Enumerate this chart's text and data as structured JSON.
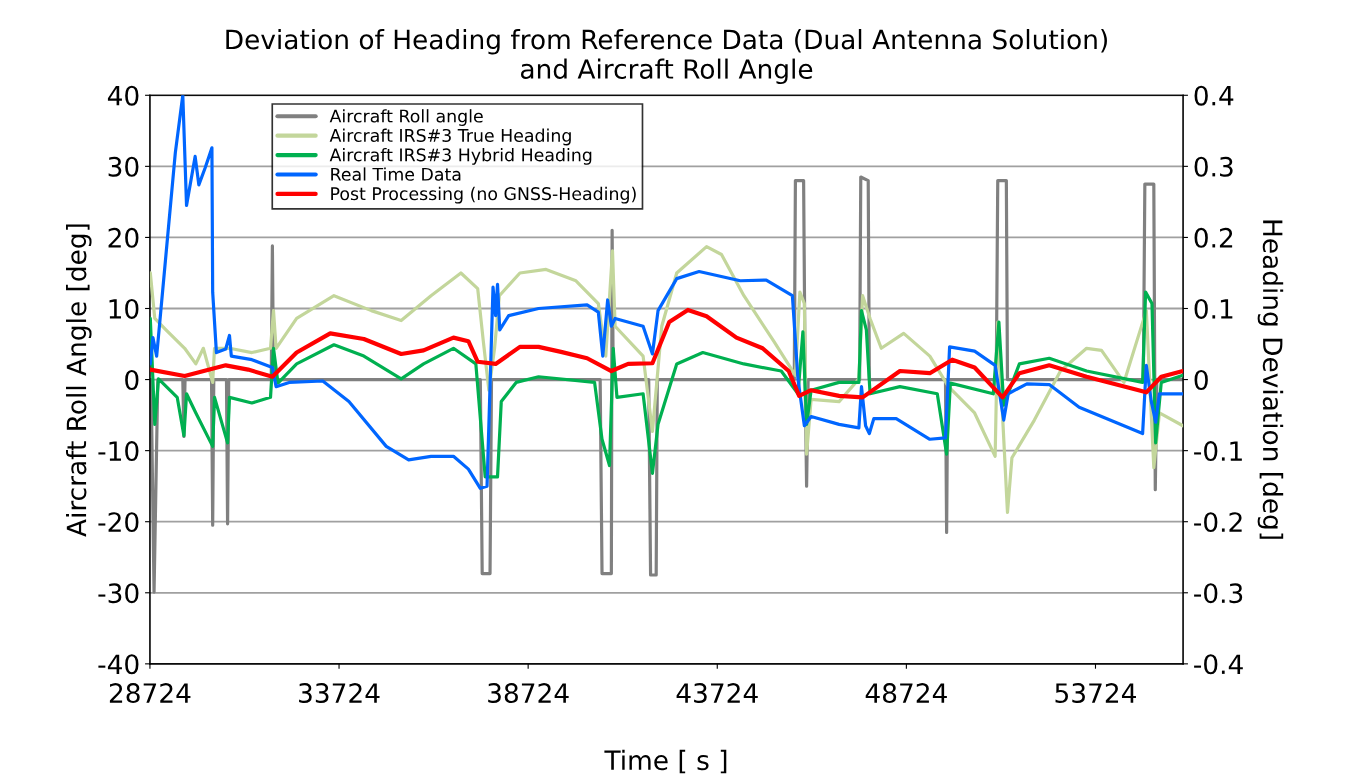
{
  "chart_data": {
    "type": "line",
    "title": "Deviation of Heading from Reference Data (Dual Antenna Solution)\nand Aircraft Roll Angle",
    "xlabel": "Time [ s ]",
    "ylabel": "Aircraft Roll Angle [deg]",
    "y2label": "Heading Deviation [deg]",
    "xlim": [
      28724,
      56040
    ],
    "xticks": [
      28724,
      33724,
      38724,
      43724,
      48724,
      53724
    ],
    "ylim": [
      -40,
      40
    ],
    "yticks": [
      -40,
      -30,
      -20,
      -10,
      0,
      10,
      20,
      30,
      40
    ],
    "y2lim": [
      -0.4,
      0.4
    ],
    "y2ticks": [
      -0.4,
      -0.3,
      -0.2,
      -0.1,
      0,
      0.1,
      0.2,
      0.3,
      0.4
    ],
    "grid": "y",
    "legend": "top left",
    "marker": "none",
    "line_style": "solid",
    "series": [
      {
        "name": "Aircraft Roll angle",
        "color": "#808080",
        "x": [
          28724,
          28754,
          28833,
          28932,
          29593,
          29623,
          29652,
          30353,
          30383,
          30412,
          30748,
          30777,
          30807,
          31932,
          31962,
          31991,
          37459,
          37509,
          37716,
          37755,
          40628,
          40677,
          40924,
          40944,
          40973,
          41911,
          41961,
          42109,
          42138,
          45760,
          45790,
          46007,
          46047,
          46086,
          46126,
          47488,
          47518,
          47715,
          47745,
          49758,
          49788,
          49817,
          51100,
          51140,
          51367,
          51397,
          54989,
          55029,
          55266,
          55305,
          55345,
          56036
        ],
        "values": [
          0,
          0,
          -29.9,
          0,
          0,
          -8,
          0,
          0,
          -20.5,
          0,
          0,
          -20.3,
          0,
          0,
          18.8,
          0,
          0,
          -27.3,
          -27.3,
          0,
          0,
          -27.3,
          -27.3,
          21,
          0,
          0,
          -27.5,
          -27.5,
          0,
          0,
          28,
          28,
          0,
          -15,
          0,
          0,
          28.5,
          28,
          0,
          0,
          -21.5,
          0,
          0,
          28,
          28,
          0,
          0,
          27.5,
          27.5,
          -15.5,
          0,
          0
        ]
      },
      {
        "name": "Aircraft IRS#3 True Heading",
        "color": "#c3d69b",
        "axis": "y2",
        "x": [
          28734,
          28852,
          29148,
          29642,
          29938,
          30136,
          30383,
          30432,
          30827,
          31419,
          31912,
          31991,
          32060,
          32603,
          33590,
          34577,
          35367,
          36156,
          36946,
          37390,
          37538,
          37686,
          37836,
          37963,
          38506,
          39197,
          39987,
          40579,
          40776,
          40954,
          41023,
          41763,
          42010,
          42257,
          42652,
          43441,
          43836,
          44428,
          45217,
          45790,
          45908,
          46027,
          46086,
          46205,
          46945,
          47468,
          47567,
          47764,
          48060,
          48653,
          49344,
          49837,
          50528,
          51071,
          51140,
          51219,
          51397,
          51515,
          52108,
          52798,
          53489,
          53884,
          54476,
          55068,
          55266,
          55414,
          56036
        ],
        "values": [
          0.15,
          0.086,
          0.07,
          0.044,
          0.022,
          0.044,
          -0.004,
          0.044,
          0.044,
          0.038,
          0.044,
          0.097,
          0.044,
          0.086,
          0.118,
          0.097,
          0.083,
          0.118,
          0.15,
          0.128,
          0.054,
          -0.015,
          0.044,
          0.118,
          0.15,
          0.155,
          0.139,
          0.107,
          0.033,
          0.181,
          0.075,
          0.033,
          -0.073,
          0.075,
          0.15,
          0.187,
          0.176,
          0.118,
          0.054,
          0.006,
          0.123,
          0.107,
          -0.105,
          -0.028,
          -0.031,
          0.001,
          0.118,
          0.086,
          0.044,
          0.065,
          0.033,
          -0.01,
          -0.047,
          -0.108,
          0.081,
          0.0,
          -0.187,
          -0.11,
          -0.057,
          0.012,
          0.044,
          0.041,
          -0.004,
          0.097,
          -0.124,
          -0.047,
          -0.065
        ]
      },
      {
        "name": "Aircraft IRS#3 Hybrid Heading",
        "color": "#00b050",
        "axis": "y2",
        "x": [
          28734,
          28852,
          28951,
          29445,
          29623,
          29692,
          29938,
          30383,
          30432,
          30777,
          30827,
          31419,
          31912,
          31991,
          32110,
          32603,
          33590,
          34380,
          35367,
          35959,
          36749,
          37341,
          37588,
          37716,
          37914,
          38013,
          38407,
          38999,
          40480,
          40677,
          40875,
          40973,
          41072,
          41763,
          42010,
          42158,
          42652,
          43342,
          44428,
          45415,
          45859,
          45988,
          46086,
          46205,
          46945,
          47468,
          47537,
          47666,
          47764,
          48554,
          49541,
          49788,
          49887,
          51022,
          51170,
          51298,
          51712,
          52502,
          53489,
          54970,
          55049,
          55217,
          55315,
          55463,
          56036
        ],
        "values": [
          0.086,
          -0.063,
          0.001,
          -0.025,
          -0.079,
          -0.02,
          -0.047,
          -0.094,
          -0.025,
          -0.089,
          -0.025,
          -0.033,
          -0.025,
          0.044,
          -0.005,
          0.022,
          0.049,
          0.033,
          0.001,
          0.022,
          0.044,
          0.022,
          -0.137,
          -0.137,
          -0.137,
          -0.031,
          -0.004,
          0.004,
          -0.004,
          -0.084,
          -0.121,
          0.044,
          -0.025,
          -0.02,
          -0.132,
          -0.063,
          0.022,
          0.038,
          0.022,
          0.012,
          -0.02,
          0.067,
          -0.063,
          -0.015,
          -0.004,
          -0.004,
          0.097,
          0.07,
          -0.02,
          -0.01,
          -0.02,
          -0.105,
          -0.005,
          -0.02,
          0.081,
          -0.036,
          0.022,
          0.03,
          0.012,
          -0.004,
          0.123,
          0.107,
          -0.089,
          -0.004,
          0.006
        ]
      },
      {
        "name": "Real Time Data",
        "color": "#0066ff",
        "axis": "y2",
        "x": [
          28734,
          28803,
          28902,
          29395,
          29593,
          29692,
          29919,
          30017,
          30185,
          30363,
          30383,
          30482,
          30728,
          30827,
          30876,
          31419,
          31962,
          32060,
          32406,
          33294,
          33985,
          34972,
          35564,
          36156,
          36749,
          37144,
          37459,
          37637,
          37795,
          37864,
          37914,
          37973,
          38210,
          38999,
          40283,
          40579,
          40697,
          40826,
          40924,
          41023,
          41763,
          42010,
          42158,
          42652,
          43244,
          44330,
          45020,
          45710,
          45859,
          46027,
          46205,
          46945,
          47468,
          47537,
          47646,
          47745,
          47863,
          48455,
          49344,
          49758,
          49867,
          50528,
          51071,
          51298,
          51416,
          51910,
          52502,
          53292,
          54970,
          55068,
          55197,
          55315,
          55414,
          56036
        ],
        "values": [
          0.022,
          0.059,
          0.033,
          0.319,
          0.4,
          0.245,
          0.314,
          0.274,
          0.298,
          0.326,
          0.123,
          0.038,
          0.043,
          0.062,
          0.033,
          0.028,
          0.017,
          -0.01,
          -0.004,
          -0.002,
          -0.031,
          -0.094,
          -0.113,
          -0.108,
          -0.108,
          -0.126,
          -0.153,
          -0.15,
          0.13,
          0.09,
          0.134,
          0.07,
          0.09,
          0.1,
          0.105,
          0.095,
          0.033,
          0.112,
          0.075,
          0.086,
          0.075,
          0.036,
          0.097,
          0.142,
          0.152,
          0.139,
          0.14,
          0.118,
          0.0,
          -0.065,
          -0.052,
          -0.063,
          -0.068,
          -0.01,
          -0.065,
          -0.076,
          -0.055,
          -0.055,
          -0.084,
          -0.082,
          0.046,
          0.04,
          0.02,
          -0.057,
          -0.02,
          -0.006,
          -0.007,
          -0.039,
          -0.076,
          0.02,
          -0.03,
          -0.06,
          -0.02,
          -0.02
        ]
      },
      {
        "name": "Post Processing (no GNSS-Heading)",
        "color": "#ff0000",
        "axis": "y2",
        "x": [
          28734,
          29642,
          30728,
          31320,
          31962,
          32603,
          33491,
          34380,
          35367,
          35959,
          36749,
          37144,
          37390,
          37864,
          38506,
          38999,
          39592,
          40283,
          40924,
          41368,
          42010,
          42454,
          42948,
          43441,
          44231,
          44922,
          45613,
          45889,
          46205,
          46945,
          47567,
          48554,
          49344,
          49936,
          50528,
          51268,
          51712,
          52502,
          53489,
          55068,
          55463,
          56036
        ],
        "values": [
          0.014,
          0.005,
          0.02,
          0.014,
          0.004,
          0.038,
          0.065,
          0.057,
          0.036,
          0.041,
          0.059,
          0.054,
          0.025,
          0.022,
          0.046,
          0.046,
          0.039,
          0.03,
          0.012,
          0.022,
          0.023,
          0.081,
          0.098,
          0.089,
          0.059,
          0.044,
          0.012,
          -0.023,
          -0.015,
          -0.023,
          -0.025,
          0.012,
          0.009,
          0.028,
          0.017,
          -0.025,
          0.009,
          0.02,
          0.004,
          -0.018,
          0.004,
          0.012
        ]
      }
    ]
  }
}
